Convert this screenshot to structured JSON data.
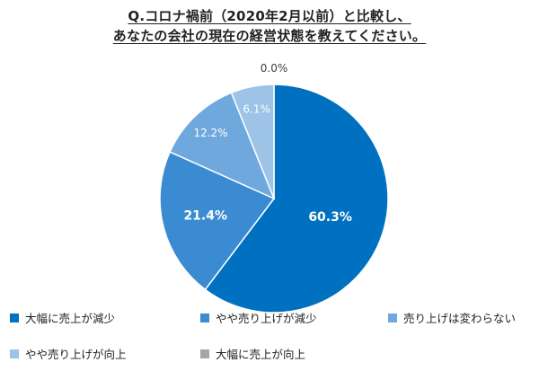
{
  "chart_data": {
    "type": "pie",
    "title_line1": "Q.コロナ禍前（2020年2月以前）と比較し、",
    "title_line2": "あなたの会社の現在の経営状態を教えてください。",
    "slices": [
      {
        "label": "大幅に売上が減少",
        "value": 60.3,
        "display": "60.3%",
        "color": "#0070c0",
        "text_color": "#ffffff"
      },
      {
        "label": "やや売り上げが減少",
        "value": 21.4,
        "display": "21.4%",
        "color": "#3a8bd2",
        "text_color": "#ffffff"
      },
      {
        "label": "売り上げは変わらない",
        "value": 12.2,
        "display": "12.2%",
        "color": "#6fa8dc",
        "text_color": "#ffffff"
      },
      {
        "label": "やや売り上げが向上",
        "value": 6.1,
        "display": "6.1%",
        "color": "#9dc3e6",
        "text_color": "#ffffff"
      },
      {
        "label": "大幅に売上が向上",
        "value": 0.0,
        "display": "0.0%",
        "color": "#a6a6a6",
        "text_color": "#404040"
      }
    ],
    "legend_position": "bottom"
  }
}
